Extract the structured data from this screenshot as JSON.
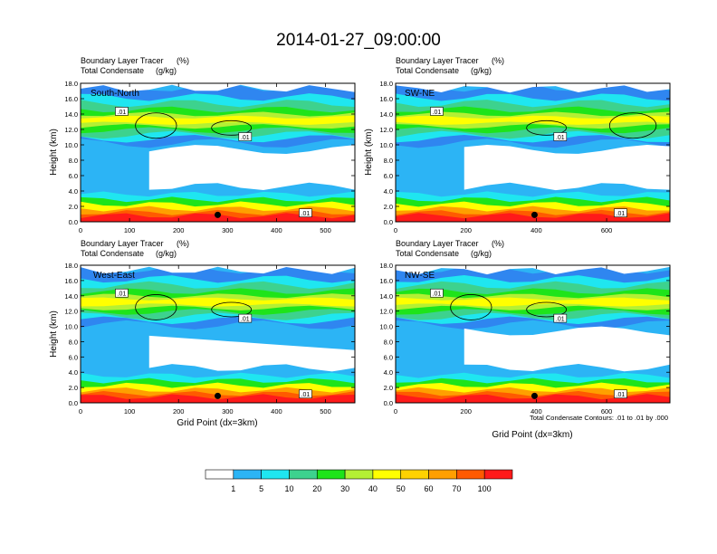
{
  "title": "2014-01-27_09:00:00",
  "chart_data": [
    {
      "type": "heatmap",
      "panel_label": "South-North",
      "top_left_text": [
        "Boundary Layer Tracer",
        "Total Condensate"
      ],
      "top_units": [
        "(%)",
        "(g/kg)"
      ],
      "ylabel": "Height (km)",
      "xlabel": "",
      "xlim": [
        0,
        560
      ],
      "ylim": [
        0,
        18
      ],
      "x_ticks": [
        "0",
        "100",
        "200",
        "300",
        "400",
        "500"
      ],
      "y_ticks": [
        "0.0",
        "2.0",
        "4.0",
        "6.0",
        "8.0",
        "10.0",
        "12.0",
        "14.0",
        "16.0",
        "18.0"
      ],
      "contour_labels": [
        ".01",
        ".01",
        ".01"
      ],
      "marker_x": 280
    },
    {
      "type": "heatmap",
      "panel_label": "SW-NE",
      "top_left_text": [
        "Boundary Layer Tracer",
        "Total Condensate"
      ],
      "top_units": [
        "(%)",
        "(g/kg)"
      ],
      "ylabel": "Height (km)",
      "xlabel": "",
      "xlim": [
        0,
        780
      ],
      "ylim": [
        0,
        18
      ],
      "x_ticks": [
        "0",
        "200",
        "400",
        "600"
      ],
      "y_ticks": [
        "0.0",
        "2.0",
        "4.0",
        "6.0",
        "8.0",
        "10.0",
        "12.0",
        "14.0",
        "16.0",
        "18.0"
      ],
      "contour_labels": [
        ".01",
        ".01",
        ".01"
      ],
      "marker_x": 395
    },
    {
      "type": "heatmap",
      "panel_label": "West-East",
      "top_left_text": [
        "Boundary Layer Tracer",
        "Total Condensate"
      ],
      "top_units": [
        "(%)",
        "(g/kg)"
      ],
      "ylabel": "Height (km)",
      "xlabel": "Grid Point (dx=3km)",
      "xlim": [
        0,
        560
      ],
      "ylim": [
        0,
        18
      ],
      "x_ticks": [
        "0",
        "100",
        "200",
        "300",
        "400",
        "500"
      ],
      "y_ticks": [
        "0.0",
        "2.0",
        "4.0",
        "6.0",
        "8.0",
        "10.0",
        "12.0",
        "14.0",
        "16.0",
        "18.0"
      ],
      "contour_labels": [
        ".01",
        ".01",
        ".01"
      ],
      "marker_x": 280
    },
    {
      "type": "heatmap",
      "panel_label": "NW-SE",
      "top_left_text": [
        "Boundary Layer Tracer",
        "Total Condensate"
      ],
      "top_units": [
        "(%)",
        "(g/kg)"
      ],
      "ylabel": "",
      "xlabel": "Grid Point (dx=3km)",
      "xlim": [
        0,
        780
      ],
      "ylim": [
        0,
        18
      ],
      "x_ticks": [
        "0",
        "200",
        "400",
        "600"
      ],
      "y_ticks": [
        "0.0",
        "2.0",
        "4.0",
        "6.0",
        "8.0",
        "10.0",
        "12.0",
        "14.0",
        "16.0",
        "18.0"
      ],
      "contour_labels": [
        ".01",
        ".01",
        ".01"
      ],
      "marker_x": 395
    }
  ],
  "contour_note": "Total Condensate Contours: .01 to .01 by .000",
  "colorbar": {
    "labels": [
      "1",
      "5",
      "10",
      "20",
      "30",
      "40",
      "50",
      "60",
      "70",
      "100"
    ],
    "colors": [
      "#ffffff",
      "#2f86f0",
      "#2cb4f5",
      "#1fe6f0",
      "#3dd28e",
      "#1ee41a",
      "#b4f034",
      "#ffff00",
      "#ffd200",
      "#ff9f00",
      "#ff5a00",
      "#ff1a1a"
    ]
  }
}
